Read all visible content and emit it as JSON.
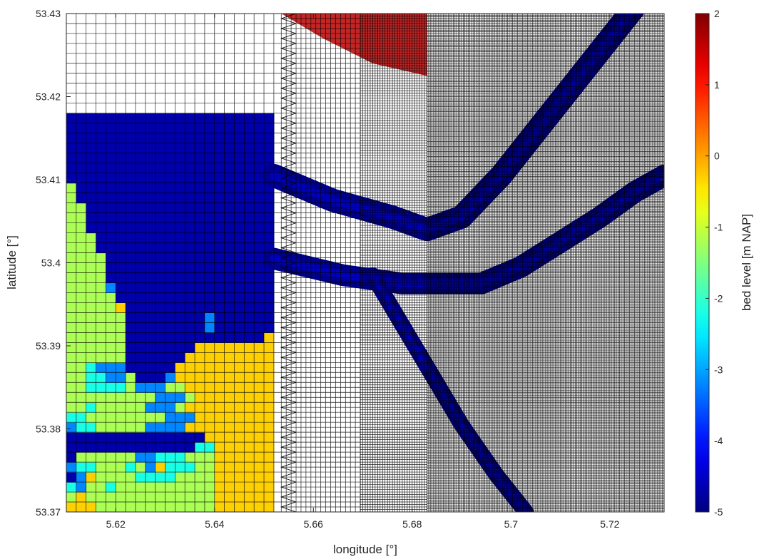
{
  "chart_data": {
    "type": "heatmap",
    "title": "",
    "xlabel": "longitude [°]",
    "ylabel": "latitude [°]",
    "colorbar_label": "bed level [m NAP]",
    "xlim": [
      5.61,
      5.731
    ],
    "ylim": [
      53.37,
      53.43
    ],
    "clim": [
      -5,
      2
    ],
    "colormap": "jet",
    "grid": "computational mesh overlay",
    "x_ticks": [
      {
        "value": 5.62,
        "label": "5.62"
      },
      {
        "value": 5.64,
        "label": "5.64"
      },
      {
        "value": 5.66,
        "label": "5.66"
      },
      {
        "value": 5.68,
        "label": "5.68"
      },
      {
        "value": 5.7,
        "label": "5.7"
      },
      {
        "value": 5.72,
        "label": "5.72"
      }
    ],
    "y_ticks": [
      {
        "value": 53.37,
        "label": "53.37"
      },
      {
        "value": 53.38,
        "label": "53.38"
      },
      {
        "value": 53.39,
        "label": "53.39"
      },
      {
        "value": 53.4,
        "label": "53.4"
      },
      {
        "value": 53.41,
        "label": "53.41"
      },
      {
        "value": 53.42,
        "label": "53.42"
      },
      {
        "value": 53.43,
        "label": "53.43"
      }
    ],
    "colorbar_ticks": [
      {
        "value": 2,
        "label": "2"
      },
      {
        "value": 1,
        "label": "1"
      },
      {
        "value": 0,
        "label": "0"
      },
      {
        "value": -1,
        "label": "-1"
      },
      {
        "value": -2,
        "label": "-2"
      },
      {
        "value": -3,
        "label": "-3"
      },
      {
        "value": -4,
        "label": "-4"
      },
      {
        "value": -5,
        "label": "-5"
      }
    ],
    "mesh_zones": [
      {
        "x_from": 5.61,
        "x_to": 5.6535,
        "cells_per_degree": 500
      },
      {
        "x_from": 5.6535,
        "x_to": 5.6695,
        "cells_per_degree": 1000
      },
      {
        "x_from": 5.6695,
        "x_to": 5.683,
        "cells_per_degree": 2000
      },
      {
        "x_from": 5.683,
        "x_to": 5.731,
        "cells_per_degree": 3000
      }
    ],
    "channels": [
      {
        "points": [
          [
            5.652,
            53.4105
          ],
          [
            5.664,
            53.4075
          ],
          [
            5.676,
            53.4055
          ],
          [
            5.683,
            53.404
          ],
          [
            5.69,
            53.4055
          ],
          [
            5.698,
            53.4105
          ],
          [
            5.706,
            53.4165
          ],
          [
            5.714,
            53.4225
          ],
          [
            5.722,
            53.4285
          ],
          [
            5.726,
            53.4315
          ]
        ],
        "width": 0.0028
      },
      {
        "points": [
          [
            5.652,
            53.4005
          ],
          [
            5.666,
            53.3985
          ],
          [
            5.678,
            53.3975
          ],
          [
            5.685,
            53.3975
          ],
          [
            5.694,
            53.3975
          ],
          [
            5.702,
            53.3995
          ],
          [
            5.71,
            53.4025
          ],
          [
            5.718,
            53.4055
          ],
          [
            5.725,
            53.4085
          ],
          [
            5.731,
            53.4105
          ]
        ],
        "width": 0.0026
      },
      {
        "points": [
          [
            5.672,
            53.3985
          ],
          [
            5.678,
            53.3925
          ],
          [
            5.684,
            53.3865
          ],
          [
            5.69,
            53.3805
          ],
          [
            5.697,
            53.3745
          ],
          [
            5.703,
            53.37
          ]
        ],
        "width": 0.0019
      }
    ],
    "coarse_cells": {
      "x0": 5.61,
      "y0": 53.37,
      "dx": 0.002,
      "dy": 0.0012,
      "rows_bottom_to_top": [
        "111222222222222111111",
        "212222222222222111111",
        "342232222222222111111",
        "541222233332222111111",
        "433222324133322111111",
        "522222244333222111111",
        "555555555555533111111",
        "555555555555551111111",
        "433222224444111111111",
        "332222222244411111111",
        "223222224442111111111",
        "222222222444211111111",
        "223333244422111111111",
        "223344255541111111111",
        "223444555551111111111",
        "222222555555111111111",
        "222222555555511111111",
        "222222555555555555551",
        "222222555555554555555",
        "222222555555554555555",
        "222221555555555555555",
        "222225555555555555555",
        "222245555555555555555",
        "222255555555555555555",
        "222255555555555555555",
        "222255555555555555555",
        "222555555555555555555",
        "222555555555555555555",
        "225555555555555555555",
        "225555555555555555555",
        "225555555555555555555",
        "255555555555555555555",
        "255555555555555555555",
        "555555555555555555555",
        "555555555555555555555",
        "555555555555555555555",
        "555555555555555555555",
        "555555555555555555555",
        "555555555555555555555",
        "555555555555555555555"
      ]
    }
  }
}
